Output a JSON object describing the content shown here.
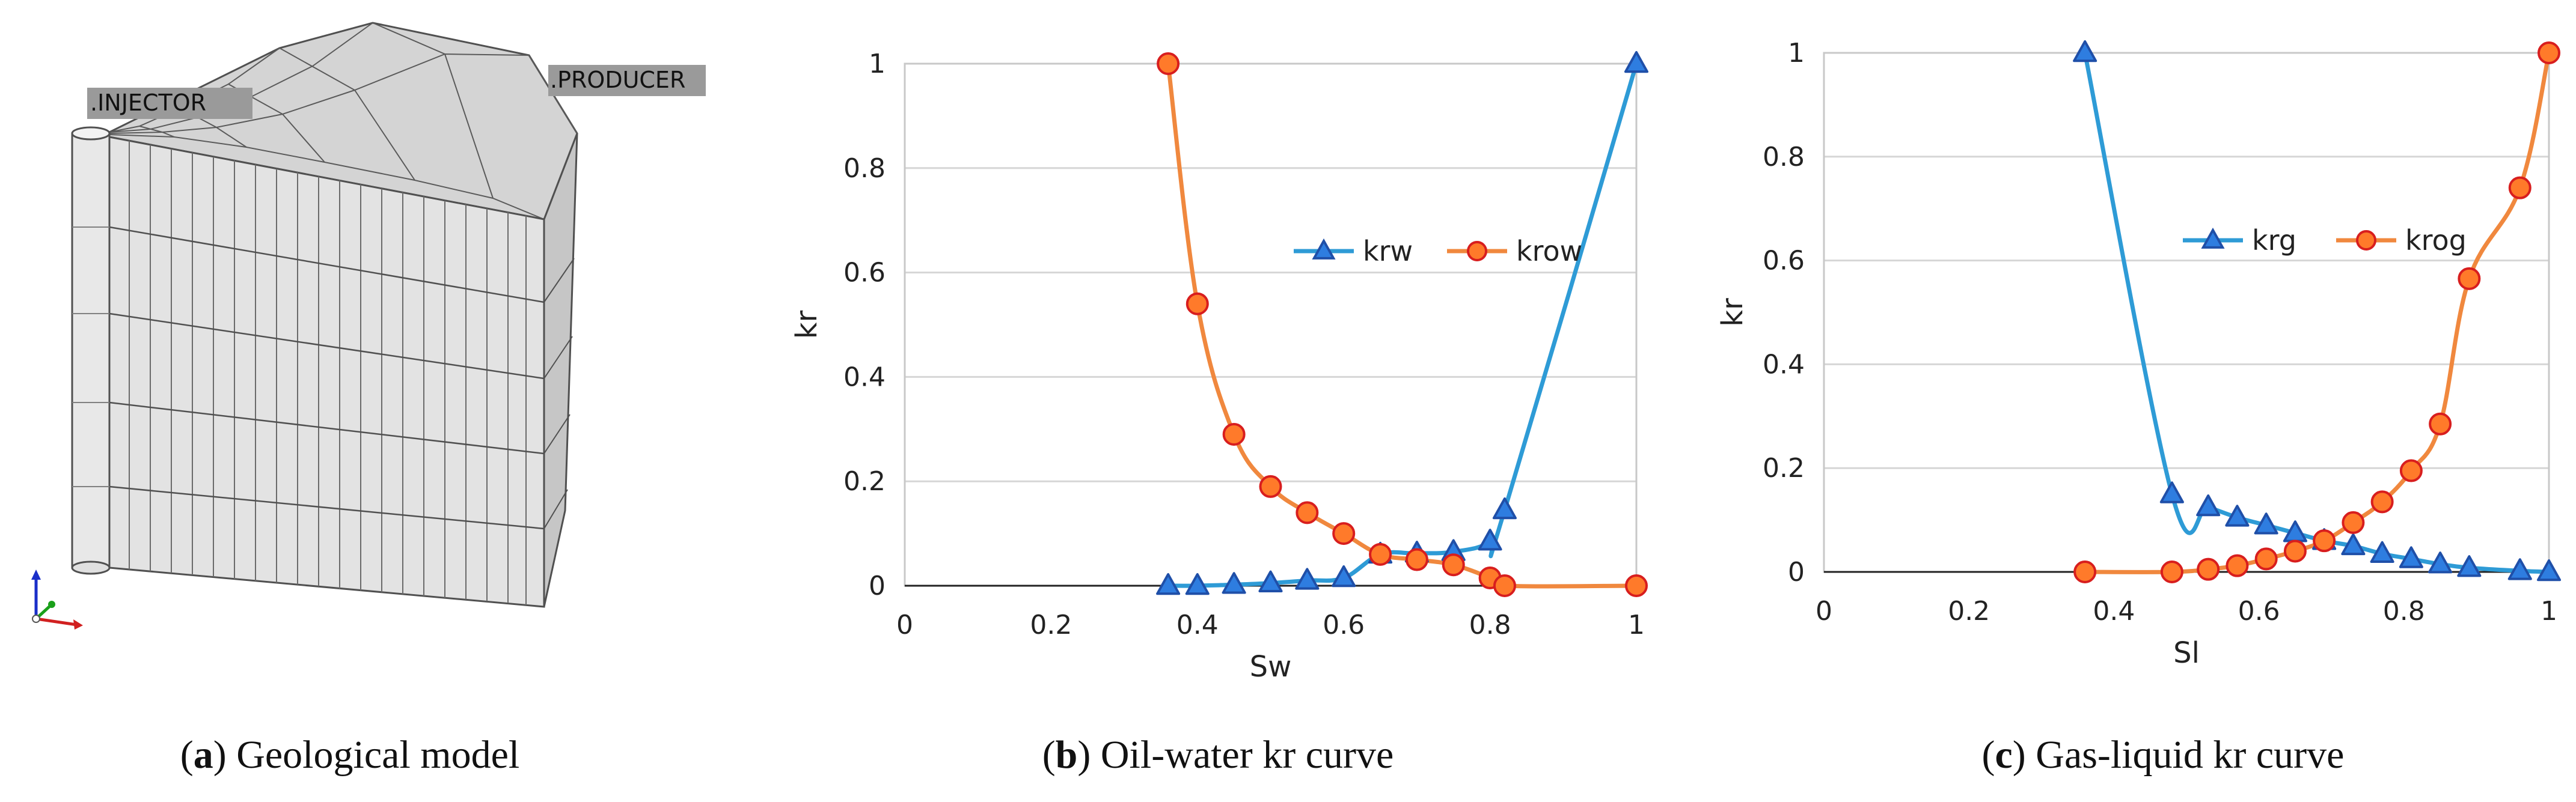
{
  "panel_a": {
    "label": "a",
    "caption_text": "Geological model",
    "well_labels": {
      "injector": "INJECTOR",
      "producer": "PRODUCER"
    },
    "colors": {
      "face_front": "#e2e2e2",
      "face_top": "#d0d0d0",
      "face_side": "#c6c6c6",
      "grid_line": "#505050",
      "tag_fill": "#9a9a9a"
    }
  },
  "panel_b": {
    "label": "b",
    "caption_text": "Oil-water kr curve"
  },
  "panel_c": {
    "label": "c",
    "caption_text": "Gas-liquid kr curve"
  },
  "chart_data": [
    {
      "id": "b",
      "type": "line",
      "title": "",
      "xlabel": "Sw",
      "ylabel": "kr",
      "xlim": [
        0,
        1
      ],
      "ylim": [
        0,
        1
      ],
      "xticks": [
        0,
        0.2,
        0.4,
        0.6,
        0.8,
        1
      ],
      "xtick_labels": [
        "0",
        "0.2",
        "0.4",
        "0.6",
        "0.8",
        "1"
      ],
      "yticks": [
        0,
        0.2,
        0.4,
        0.6,
        0.8,
        1
      ],
      "ytick_labels": [
        "0",
        "0.2",
        "0.4",
        "0.6",
        "0.8",
        "1"
      ],
      "grid": "horizontal",
      "legend": "upper-right",
      "series": [
        {
          "name": "krw",
          "marker": "triangle",
          "color": "#2e9bd6",
          "marker_fill": "#2e7de0",
          "marker_edge": "#1f4fa8",
          "x": [
            0.36,
            0.4,
            0.45,
            0.5,
            0.55,
            0.6,
            0.65,
            0.7,
            0.75,
            0.8,
            0.82,
            1.0
          ],
          "y": [
            0,
            0,
            0.002,
            0.005,
            0.01,
            0.015,
            0.06,
            0.062,
            0.065,
            0.085,
            0.145,
            1.0
          ]
        },
        {
          "name": "krow",
          "marker": "circle",
          "color": "#f0883e",
          "marker_fill": "#ff7a2a",
          "marker_edge": "#d81e1e",
          "x": [
            0.36,
            0.4,
            0.45,
            0.5,
            0.55,
            0.6,
            0.65,
            0.7,
            0.75,
            0.8,
            0.82,
            1.0
          ],
          "y": [
            1.0,
            0.54,
            0.29,
            0.19,
            0.14,
            0.1,
            0.06,
            0.05,
            0.04,
            0.015,
            0,
            0
          ]
        }
      ]
    },
    {
      "id": "c",
      "type": "line",
      "title": "",
      "xlabel": "Sl",
      "ylabel": "kr",
      "xlim": [
        0,
        1
      ],
      "ylim": [
        0,
        1
      ],
      "xticks": [
        0,
        0.2,
        0.4,
        0.6,
        0.8,
        1
      ],
      "xtick_labels": [
        "0",
        "0.2",
        "0.4",
        "0.6",
        "0.8",
        "1"
      ],
      "yticks": [
        0,
        0.2,
        0.4,
        0.6,
        0.8,
        1
      ],
      "ytick_labels": [
        "0",
        "0.2",
        "0.4",
        "0.6",
        "0.8",
        "1"
      ],
      "grid": "horizontal",
      "legend": "upper-right",
      "series": [
        {
          "name": "krg",
          "marker": "triangle",
          "color": "#2e9bd6",
          "marker_fill": "#2e7de0",
          "marker_edge": "#1f4fa8",
          "x": [
            0.36,
            0.48,
            0.53,
            0.57,
            0.61,
            0.65,
            0.69,
            0.73,
            0.77,
            0.81,
            0.85,
            0.89,
            0.96,
            1.0
          ],
          "y": [
            1.0,
            0.15,
            0.125,
            0.105,
            0.09,
            0.075,
            0.06,
            0.05,
            0.035,
            0.025,
            0.015,
            0.008,
            0.002,
            0
          ]
        },
        {
          "name": "krog",
          "marker": "circle",
          "color": "#f0883e",
          "marker_fill": "#ff7a2a",
          "marker_edge": "#d81e1e",
          "x": [
            0.36,
            0.48,
            0.53,
            0.57,
            0.61,
            0.65,
            0.69,
            0.73,
            0.77,
            0.81,
            0.85,
            0.89,
            0.96,
            1.0
          ],
          "y": [
            0,
            0,
            0.005,
            0.012,
            0.025,
            0.04,
            0.06,
            0.095,
            0.135,
            0.195,
            0.285,
            0.565,
            0.74,
            1.0
          ]
        }
      ]
    }
  ]
}
